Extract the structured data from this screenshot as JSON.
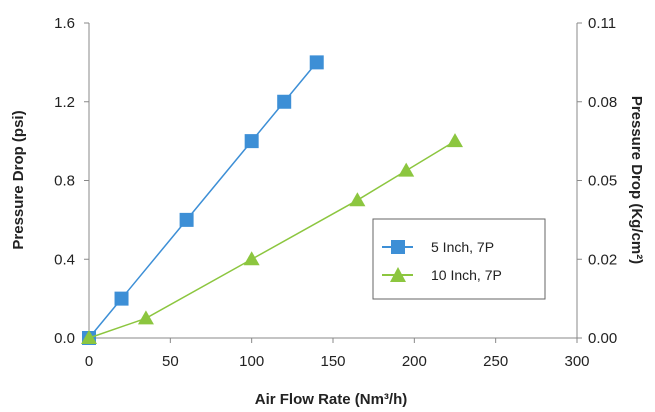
{
  "chart_data": {
    "type": "line",
    "x_range": [
      0,
      300
    ],
    "x_ticks": [
      "0",
      "50",
      "100",
      "150",
      "200",
      "250",
      "300"
    ],
    "y_left_range": [
      0,
      1.6
    ],
    "y_left_ticks": [
      "0.0",
      "0.4",
      "0.8",
      "1.2",
      "1.6"
    ],
    "y_right_ticks": [
      "0.00",
      "0.02",
      "0.05",
      "0.08",
      "0.11"
    ],
    "xlabel": "Air Flow Rate (Nm³/h)",
    "ylabel_left": "Pressure Drop (psi)",
    "ylabel_right": "Pressure Drop (Kg/cm²)",
    "grid": false,
    "legend_position": "right-middle",
    "series": [
      {
        "name": "5 Inch, 7P",
        "color": "#3d8fd6",
        "marker": "square",
        "x": [
          0,
          20,
          60,
          100,
          120,
          140
        ],
        "y": [
          0.0,
          0.2,
          0.6,
          1.0,
          1.2,
          1.4
        ]
      },
      {
        "name": "10 Inch, 7P",
        "color": "#8cc63f",
        "marker": "triangle",
        "x": [
          0,
          35,
          100,
          165,
          195,
          225
        ],
        "y": [
          0.0,
          0.1,
          0.4,
          0.7,
          0.85,
          1.0
        ]
      }
    ]
  }
}
